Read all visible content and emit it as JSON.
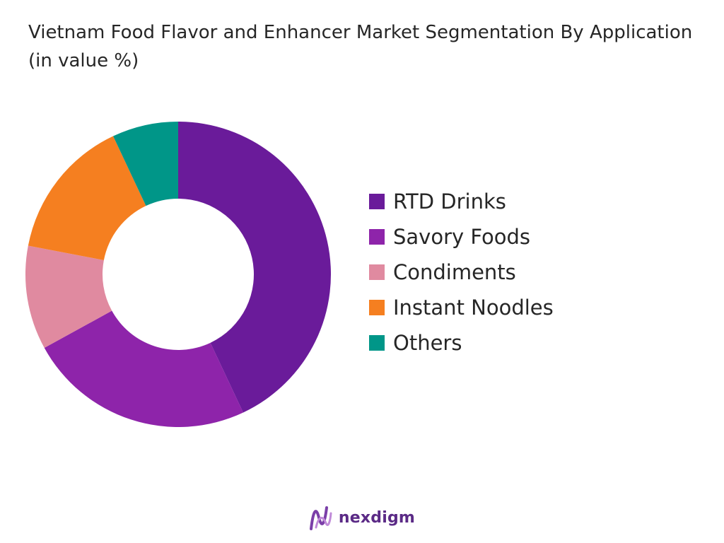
{
  "chart_data": {
    "type": "pie",
    "donut": true,
    "title": "Vietnam Food Flavor and Enhancer Market Segmentation By Application (in value %)",
    "categories": [
      "RTD Drinks",
      "Savory Foods",
      "Condiments",
      "Instant Noodles",
      "Others"
    ],
    "values": [
      43,
      24,
      11,
      15,
      7
    ],
    "colors": [
      "#6a1b9a",
      "#8e24aa",
      "#e08aa0",
      "#f57f20",
      "#009688"
    ],
    "legend_position": "right"
  },
  "brand": {
    "name": "nexdigm",
    "mark_color": "#7b3fa8"
  }
}
